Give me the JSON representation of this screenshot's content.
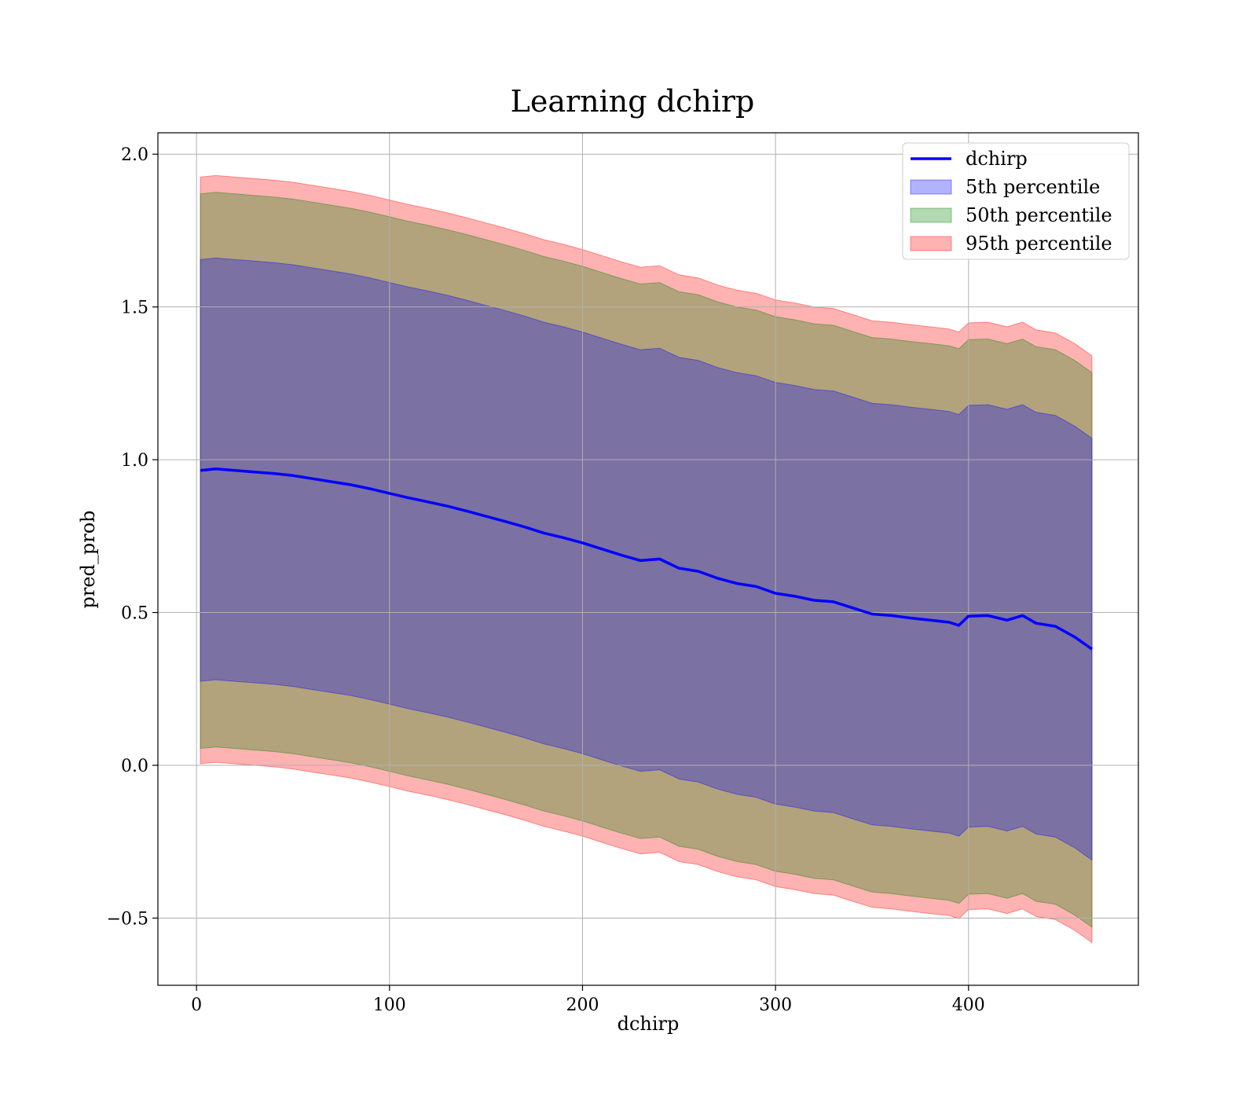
{
  "chart_data": {
    "type": "area",
    "title": "Learning dchirp",
    "xlabel": "dchirp",
    "ylabel": "pred_prob",
    "xlim": [
      -20,
      488
    ],
    "ylim": [
      -0.72,
      2.07
    ],
    "xticks": [
      0,
      100,
      200,
      300,
      400
    ],
    "xtick_labels": [
      "0",
      "100",
      "200",
      "300",
      "400"
    ],
    "yticks": [
      -0.5,
      0.0,
      0.5,
      1.0,
      1.5,
      2.0
    ],
    "ytick_labels": [
      "−0.5",
      "0.0",
      "0.5",
      "1.0",
      "1.5",
      "2.0"
    ],
    "grid": true,
    "legend_position": "top-right",
    "colors": {
      "line": "#0000ff",
      "band_5th": "#0000ff",
      "band_50th": "#008000",
      "band_95th": "#ff0000"
    },
    "x": [
      2,
      10,
      20,
      30,
      40,
      50,
      60,
      70,
      80,
      90,
      100,
      110,
      120,
      130,
      140,
      150,
      160,
      170,
      180,
      190,
      200,
      210,
      220,
      230,
      240,
      250,
      260,
      270,
      280,
      290,
      300,
      310,
      320,
      330,
      340,
      350,
      360,
      370,
      380,
      390,
      395,
      400,
      410,
      420,
      428,
      435,
      445,
      455,
      464
    ],
    "series": [
      {
        "name": "dchirp",
        "kind": "line",
        "values": [
          0.965,
          0.97,
          0.965,
          0.96,
          0.955,
          0.948,
          0.938,
          0.928,
          0.918,
          0.905,
          0.89,
          0.875,
          0.862,
          0.848,
          0.832,
          0.815,
          0.798,
          0.78,
          0.76,
          0.745,
          0.728,
          0.708,
          0.688,
          0.67,
          0.675,
          0.645,
          0.635,
          0.612,
          0.595,
          0.585,
          0.563,
          0.553,
          0.54,
          0.535,
          0.515,
          0.495,
          0.49,
          0.482,
          0.475,
          0.468,
          0.458,
          0.488,
          0.49,
          0.475,
          0.49,
          0.465,
          0.455,
          0.42,
          0.38
        ]
      },
      {
        "name": "5th percentile",
        "kind": "band",
        "upper": [
          1.655,
          1.66,
          1.655,
          1.65,
          1.645,
          1.638,
          1.628,
          1.618,
          1.608,
          1.595,
          1.58,
          1.565,
          1.552,
          1.538,
          1.522,
          1.505,
          1.488,
          1.47,
          1.45,
          1.435,
          1.418,
          1.398,
          1.378,
          1.36,
          1.365,
          1.335,
          1.325,
          1.302,
          1.285,
          1.275,
          1.253,
          1.243,
          1.23,
          1.225,
          1.205,
          1.185,
          1.18,
          1.172,
          1.165,
          1.158,
          1.148,
          1.178,
          1.18,
          1.165,
          1.18,
          1.155,
          1.145,
          1.11,
          1.07
        ],
        "lower": [
          0.275,
          0.28,
          0.275,
          0.27,
          0.265,
          0.258,
          0.248,
          0.238,
          0.228,
          0.215,
          0.2,
          0.185,
          0.172,
          0.158,
          0.142,
          0.125,
          0.108,
          0.09,
          0.07,
          0.055,
          0.038,
          0.018,
          -0.002,
          -0.02,
          -0.015,
          -0.045,
          -0.055,
          -0.078,
          -0.095,
          -0.105,
          -0.127,
          -0.137,
          -0.15,
          -0.155,
          -0.175,
          -0.195,
          -0.2,
          -0.208,
          -0.215,
          -0.222,
          -0.232,
          -0.202,
          -0.2,
          -0.215,
          -0.2,
          -0.225,
          -0.235,
          -0.27,
          -0.31
        ]
      },
      {
        "name": "50th percentile",
        "kind": "band",
        "upper": [
          1.87,
          1.875,
          1.87,
          1.865,
          1.86,
          1.853,
          1.843,
          1.833,
          1.823,
          1.81,
          1.795,
          1.78,
          1.767,
          1.753,
          1.737,
          1.72,
          1.703,
          1.685,
          1.665,
          1.65,
          1.633,
          1.613,
          1.593,
          1.575,
          1.58,
          1.55,
          1.54,
          1.517,
          1.5,
          1.49,
          1.468,
          1.458,
          1.445,
          1.44,
          1.42,
          1.4,
          1.395,
          1.387,
          1.38,
          1.373,
          1.363,
          1.393,
          1.395,
          1.38,
          1.395,
          1.37,
          1.36,
          1.325,
          1.285
        ],
        "lower": [
          0.055,
          0.06,
          0.055,
          0.05,
          0.045,
          0.038,
          0.028,
          0.018,
          0.008,
          -0.005,
          -0.02,
          -0.035,
          -0.048,
          -0.062,
          -0.078,
          -0.095,
          -0.112,
          -0.13,
          -0.15,
          -0.165,
          -0.182,
          -0.202,
          -0.222,
          -0.24,
          -0.235,
          -0.265,
          -0.275,
          -0.298,
          -0.315,
          -0.325,
          -0.347,
          -0.357,
          -0.37,
          -0.375,
          -0.395,
          -0.415,
          -0.42,
          -0.428,
          -0.435,
          -0.442,
          -0.452,
          -0.422,
          -0.42,
          -0.435,
          -0.42,
          -0.445,
          -0.455,
          -0.49,
          -0.53
        ]
      },
      {
        "name": "95th percentile",
        "kind": "band",
        "upper": [
          1.925,
          1.93,
          1.925,
          1.92,
          1.915,
          1.908,
          1.898,
          1.888,
          1.878,
          1.865,
          1.85,
          1.835,
          1.822,
          1.808,
          1.792,
          1.775,
          1.758,
          1.74,
          1.72,
          1.705,
          1.688,
          1.668,
          1.648,
          1.63,
          1.635,
          1.605,
          1.595,
          1.572,
          1.555,
          1.545,
          1.523,
          1.513,
          1.5,
          1.495,
          1.475,
          1.455,
          1.45,
          1.442,
          1.435,
          1.428,
          1.418,
          1.448,
          1.45,
          1.435,
          1.45,
          1.425,
          1.415,
          1.38,
          1.34
        ],
        "lower": [
          0.005,
          0.01,
          0.005,
          0.0,
          -0.005,
          -0.012,
          -0.022,
          -0.032,
          -0.042,
          -0.055,
          -0.07,
          -0.085,
          -0.098,
          -0.112,
          -0.128,
          -0.145,
          -0.162,
          -0.18,
          -0.2,
          -0.215,
          -0.232,
          -0.252,
          -0.272,
          -0.29,
          -0.285,
          -0.315,
          -0.325,
          -0.348,
          -0.365,
          -0.375,
          -0.397,
          -0.407,
          -0.42,
          -0.425,
          -0.445,
          -0.465,
          -0.47,
          -0.478,
          -0.485,
          -0.492,
          -0.502,
          -0.472,
          -0.47,
          -0.485,
          -0.47,
          -0.495,
          -0.505,
          -0.54,
          -0.58
        ]
      }
    ]
  }
}
